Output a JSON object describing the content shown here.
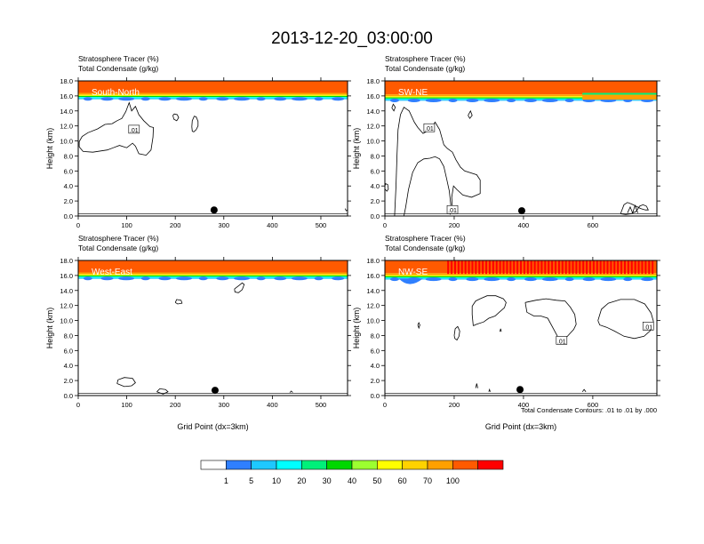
{
  "figure": {
    "title": "2013-12-20_03:00:00",
    "footnote": "Total Condensate Contours: .01 to .01 by .000"
  },
  "colorbar": {
    "colors": [
      "#ffffff",
      "#2f7fff",
      "#1ec8ff",
      "#00ffff",
      "#00f07a",
      "#00d800",
      "#9cff30",
      "#ffff00",
      "#ffd200",
      "#ffa000",
      "#ff5a00",
      "#ff0000"
    ],
    "labels": [
      "1",
      "5",
      "10",
      "20",
      "30",
      "40",
      "50",
      "60",
      "70",
      "100"
    ]
  },
  "chart_data": [
    {
      "type": "heatmap",
      "panel": "South-North",
      "label": "South-North",
      "title_line1": "Stratosphere Tracer   (%)",
      "title_line2": "Total Condensate   (g/kg)",
      "xlabel": "",
      "ylabel": "Height (km)",
      "xlim": [
        0,
        555
      ],
      "ylim": [
        0,
        18
      ],
      "xticks": [
        0,
        100,
        200,
        300,
        400,
        500
      ],
      "yticks": [
        0,
        2,
        4,
        6,
        8,
        10,
        12,
        14,
        16,
        18
      ],
      "ytick_labels": [
        "0.0",
        "2.0",
        "4.0",
        "6.0",
        "8.0",
        "10.0",
        "12.0",
        "14.0",
        "16.0",
        "18.0"
      ],
      "tracer_layer": {
        "tropopause_km": 15.7,
        "full_km": 16.4
      },
      "contour_level": ".01",
      "contour_labels": [
        {
          "x": 115,
          "y": 11.5,
          "text": ".01"
        }
      ],
      "contours": [
        [
          [
            2,
            9.2
          ],
          [
            10,
            8.6
          ],
          [
            30,
            8.5
          ],
          [
            60,
            8.8
          ],
          [
            85,
            9.4
          ],
          [
            100,
            9.1
          ],
          [
            112,
            9.7
          ],
          [
            118,
            9.3
          ],
          [
            125,
            8.3
          ],
          [
            140,
            8.1
          ],
          [
            150,
            8.8
          ],
          [
            154,
            10.5
          ],
          [
            155,
            11.8
          ],
          [
            148,
            11.9
          ],
          [
            135,
            12.7
          ],
          [
            125,
            13.5
          ],
          [
            118,
            14.6
          ],
          [
            110,
            14.0
          ],
          [
            105,
            15.1
          ],
          [
            98,
            13.9
          ],
          [
            90,
            13.0
          ],
          [
            80,
            12.7
          ],
          [
            70,
            12.3
          ],
          [
            55,
            12.2
          ],
          [
            40,
            11.6
          ],
          [
            20,
            11.1
          ],
          [
            8,
            10.6
          ],
          [
            2,
            9.9
          ],
          [
            2,
            9.2
          ]
        ],
        [
          [
            195,
            13.4
          ],
          [
            197,
            12.9
          ],
          [
            203,
            12.7
          ],
          [
            207,
            13.1
          ],
          [
            204,
            13.5
          ],
          [
            198,
            13.6
          ],
          [
            195,
            13.4
          ]
        ],
        [
          [
            238,
            11.2
          ],
          [
            243,
            11.5
          ],
          [
            247,
            12.0
          ],
          [
            247,
            12.6
          ],
          [
            243,
            13.2
          ],
          [
            239,
            13.3
          ],
          [
            235,
            12.7
          ],
          [
            234,
            11.9
          ],
          [
            235,
            11.3
          ],
          [
            238,
            11.2
          ]
        ],
        [
          [
            550,
            1.0
          ],
          [
            552,
            0.7
          ],
          [
            555,
            0.8
          ]
        ]
      ],
      "marker": {
        "x": 280,
        "y": 0.8
      }
    },
    {
      "type": "heatmap",
      "panel": "SW-NE",
      "label": "SW-NE",
      "title_line1": "Stratosphere Tracer   (%)",
      "title_line2": "Total Condensate   (g/kg)",
      "xlabel": "",
      "ylabel": "Height (km)",
      "xlim": [
        0,
        785
      ],
      "ylim": [
        0,
        18
      ],
      "xticks": [
        0,
        200,
        400,
        600
      ],
      "yticks": [
        0,
        2,
        4,
        6,
        8,
        10,
        12,
        14,
        16,
        18
      ],
      "ytick_labels": [
        "0.0",
        "2.0",
        "4.0",
        "6.0",
        "8.0",
        "10.0",
        "12.0",
        "14.0",
        "16.0",
        "18.0"
      ],
      "tracer_layer": {
        "tropopause_km": 15.5,
        "full_km": 16.2
      },
      "contour_level": ".01",
      "contour_labels": [
        {
          "x": 128,
          "y": 11.7,
          "text": ".01"
        },
        {
          "x": 195,
          "y": 0.8,
          "text": ".01"
        }
      ],
      "contours": [
        [
          [
            28,
            0.0
          ],
          [
            32,
            4.0
          ],
          [
            35,
            8.0
          ],
          [
            38,
            11.5
          ],
          [
            45,
            13.5
          ],
          [
            55,
            14.5
          ],
          [
            70,
            14.0
          ],
          [
            85,
            12.5
          ],
          [
            95,
            11.8
          ],
          [
            110,
            11.0
          ],
          [
            130,
            11.5
          ],
          [
            145,
            12.5
          ],
          [
            158,
            11.5
          ],
          [
            170,
            9.5
          ],
          [
            180,
            9.0
          ],
          [
            195,
            8.5
          ],
          [
            205,
            7.5
          ],
          [
            218,
            6.5
          ],
          [
            230,
            6.0
          ],
          [
            265,
            5.5
          ],
          [
            275,
            4.8
          ],
          [
            275,
            3.0
          ],
          [
            250,
            2.5
          ],
          [
            225,
            2.8
          ],
          [
            208,
            3.5
          ],
          [
            198,
            4.0
          ],
          [
            193,
            2.5
          ],
          [
            195,
            0.8
          ],
          [
            188,
            0.2
          ],
          [
            190,
            1.5
          ],
          [
            186,
            3.3
          ],
          [
            178,
            5.0
          ],
          [
            170,
            6.6
          ],
          [
            158,
            7.6
          ],
          [
            145,
            7.9
          ],
          [
            130,
            7.7
          ],
          [
            112,
            7.6
          ],
          [
            95,
            7.1
          ],
          [
            80,
            5.8
          ],
          [
            68,
            3.5
          ],
          [
            60,
            1.2
          ],
          [
            55,
            0.0
          ]
        ],
        [
          [
            0,
            3.6
          ],
          [
            6,
            3.3
          ],
          [
            10,
            3.6
          ],
          [
            8,
            4.2
          ],
          [
            2,
            4.3
          ],
          [
            0,
            4.0
          ]
        ],
        [
          [
            240,
            13.4
          ],
          [
            245,
            13.0
          ],
          [
            252,
            13.4
          ],
          [
            247,
            14.0
          ],
          [
            240,
            13.4
          ]
        ],
        [
          [
            20,
            14.4
          ],
          [
            26,
            14.0
          ],
          [
            30,
            14.5
          ],
          [
            24,
            14.9
          ],
          [
            20,
            14.4
          ]
        ],
        [
          [
            680,
            0.3
          ],
          [
            690,
            1.5
          ],
          [
            700,
            1.8
          ],
          [
            712,
            1.6
          ],
          [
            725,
            1.3
          ],
          [
            738,
            1.0
          ],
          [
            752,
            0.8
          ],
          [
            760,
            0.8
          ],
          [
            755,
            1.3
          ],
          [
            745,
            1.5
          ],
          [
            735,
            1.3
          ],
          [
            725,
            0.6
          ],
          [
            710,
            0.3
          ],
          [
            695,
            0.2
          ],
          [
            680,
            0.3
          ]
        ],
        [
          [
            700,
            0.4
          ],
          [
            708,
            1.2
          ],
          [
            715,
            0.4
          ],
          [
            722,
            1.4
          ],
          [
            730,
            0.4
          ]
        ]
      ],
      "marker": {
        "x": 395,
        "y": 0.7
      }
    },
    {
      "type": "heatmap",
      "panel": "West-East",
      "label": "West-East",
      "title_line1": "Stratosphere Tracer   (%)",
      "title_line2": "Total Condensate   (g/kg)",
      "xlabel": "Grid Point (dx=3km)",
      "ylabel": "Height (km)",
      "xlim": [
        0,
        555
      ],
      "ylim": [
        0,
        18
      ],
      "xticks": [
        0,
        100,
        200,
        300,
        400,
        500
      ],
      "yticks": [
        0,
        2,
        4,
        6,
        8,
        10,
        12,
        14,
        16,
        18
      ],
      "ytick_labels": [
        "0.0",
        "2.0",
        "4.0",
        "6.0",
        "8.0",
        "10.0",
        "12.0",
        "14.0",
        "16.0",
        "18.0"
      ],
      "tracer_layer": {
        "tropopause_km": 15.7,
        "full_km": 16.4
      },
      "contour_level": ".01",
      "contour_labels": [],
      "contours": [
        [
          [
            322,
            14.2
          ],
          [
            330,
            14.6
          ],
          [
            338,
            15.0
          ],
          [
            342,
            14.8
          ],
          [
            338,
            14.1
          ],
          [
            330,
            13.7
          ],
          [
            323,
            13.8
          ],
          [
            322,
            14.2
          ]
        ],
        [
          [
            200,
            12.4
          ],
          [
            205,
            12.2
          ],
          [
            214,
            12.3
          ],
          [
            212,
            12.7
          ],
          [
            203,
            12.8
          ],
          [
            200,
            12.4
          ]
        ],
        [
          [
            80,
            1.6
          ],
          [
            95,
            1.2
          ],
          [
            110,
            1.3
          ],
          [
            118,
            1.7
          ],
          [
            112,
            2.3
          ],
          [
            95,
            2.4
          ],
          [
            82,
            2.1
          ],
          [
            80,
            1.6
          ]
        ],
        [
          [
            162,
            0.5
          ],
          [
            168,
            0.9
          ],
          [
            180,
            0.8
          ],
          [
            185,
            0.5
          ],
          [
            175,
            0.2
          ],
          [
            162,
            0.5
          ]
        ],
        [
          [
            436,
            0.4
          ],
          [
            439,
            0.6
          ],
          [
            442,
            0.4
          ]
        ]
      ],
      "marker": {
        "x": 282,
        "y": 0.7
      }
    },
    {
      "type": "heatmap",
      "panel": "NW-SE",
      "label": "NW-SE",
      "title_line1": "Stratosphere Tracer   (%)",
      "title_line2": "Total Condensate   (g/kg)",
      "xlabel": "Grid Point (dx=3km)",
      "ylabel": "Height (km)",
      "xlim": [
        0,
        785
      ],
      "ylim": [
        0,
        18
      ],
      "xticks": [
        0,
        200,
        400,
        600
      ],
      "yticks": [
        0,
        2,
        4,
        6,
        8,
        10,
        12,
        14,
        16,
        18
      ],
      "ytick_labels": [
        "0.0",
        "2.0",
        "4.0",
        "6.0",
        "8.0",
        "10.0",
        "12.0",
        "14.0",
        "16.0",
        "18.0"
      ],
      "tracer_layer": {
        "tropopause_km": 15.6,
        "full_km": 16.3
      },
      "contour_level": ".01",
      "contour_labels": [
        {
          "x": 510,
          "y": 7.3,
          "text": ".01"
        },
        {
          "x": 760,
          "y": 9.2,
          "text": ".01"
        }
      ],
      "contours": [
        [
          [
            255,
            9.3
          ],
          [
            265,
            9.5
          ],
          [
            285,
            9.8
          ],
          [
            300,
            10.3
          ],
          [
            318,
            10.6
          ],
          [
            330,
            11.1
          ],
          [
            345,
            11.7
          ],
          [
            350,
            12.4
          ],
          [
            342,
            12.9
          ],
          [
            320,
            13.3
          ],
          [
            295,
            13.3
          ],
          [
            275,
            12.9
          ],
          [
            262,
            12.6
          ],
          [
            252,
            11.9
          ],
          [
            252,
            10.8
          ],
          [
            255,
            9.3
          ]
        ],
        [
          [
            405,
            12.4
          ],
          [
            435,
            12.7
          ],
          [
            465,
            12.9
          ],
          [
            495,
            12.7
          ],
          [
            520,
            12.6
          ],
          [
            535,
            11.8
          ],
          [
            548,
            10.8
          ],
          [
            552,
            9.5
          ],
          [
            545,
            8.8
          ],
          [
            525,
            7.8
          ],
          [
            505,
            7.3
          ],
          [
            490,
            8.6
          ],
          [
            470,
            10.3
          ],
          [
            450,
            10.6
          ],
          [
            430,
            10.6
          ],
          [
            410,
            11.1
          ],
          [
            405,
            12.4
          ]
        ],
        [
          [
            615,
            10.0
          ],
          [
            625,
            11.5
          ],
          [
            645,
            12.3
          ],
          [
            680,
            12.8
          ],
          [
            720,
            12.8
          ],
          [
            750,
            12.2
          ],
          [
            768,
            11.0
          ],
          [
            775,
            9.9
          ],
          [
            765,
            8.6
          ],
          [
            748,
            7.9
          ],
          [
            720,
            7.6
          ],
          [
            690,
            7.9
          ],
          [
            662,
            8.6
          ],
          [
            640,
            9.1
          ],
          [
            620,
            9.4
          ],
          [
            615,
            10.0
          ]
        ],
        [
          [
            200,
            8.0
          ],
          [
            203,
            8.9
          ],
          [
            210,
            9.2
          ],
          [
            216,
            8.6
          ],
          [
            214,
            7.9
          ],
          [
            208,
            7.4
          ],
          [
            202,
            7.6
          ],
          [
            200,
            8.0
          ]
        ],
        [
          [
            95,
            9.4
          ],
          [
            98,
            9.7
          ],
          [
            101,
            9.4
          ],
          [
            98,
            9.0
          ],
          [
            95,
            9.4
          ]
        ],
        [
          [
            332,
            8.5
          ],
          [
            334,
            8.9
          ],
          [
            336,
            8.5
          ]
        ],
        [
          [
            262,
            1.0
          ],
          [
            265,
            1.6
          ],
          [
            268,
            1.0
          ]
        ],
        [
          [
            300,
            0.5
          ],
          [
            302,
            0.8
          ],
          [
            304,
            0.5
          ]
        ],
        [
          [
            570,
            0.5
          ],
          [
            575,
            0.8
          ],
          [
            580,
            0.5
          ]
        ]
      ],
      "marker": {
        "x": 390,
        "y": 0.8
      }
    }
  ]
}
